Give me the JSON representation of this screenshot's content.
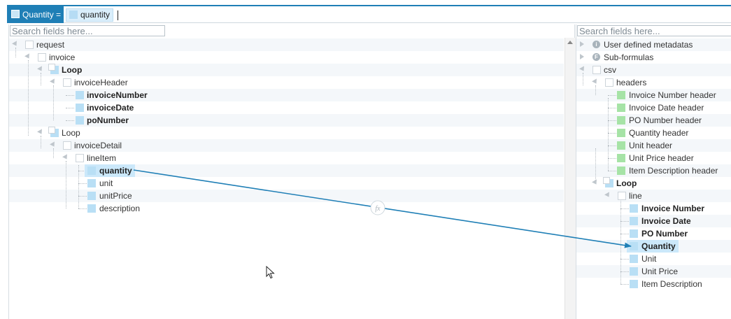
{
  "formula": {
    "target": "Quantity =",
    "token": "quantity"
  },
  "left": {
    "search_placeholder": "Search fields here...",
    "nodes": {
      "request": "request",
      "invoice": "invoice",
      "loop1": "Loop",
      "invoiceHeader": "invoiceHeader",
      "invoiceNumber": "invoiceNumber",
      "invoiceDate": "invoiceDate",
      "poNumber": "poNumber",
      "loop2": "Loop",
      "invoiceDetail": "invoiceDetail",
      "lineItem": "lineItem",
      "quantity": "quantity",
      "unit": "unit",
      "unitPrice": "unitPrice",
      "description": "description"
    }
  },
  "right": {
    "search_placeholder": "Search fields here...",
    "nodes": {
      "udm": "User defined metadatas",
      "subformulas": "Sub-formulas",
      "csv": "csv",
      "headers": "headers",
      "h_invoiceNumber": "Invoice Number header",
      "h_invoiceDate": "Invoice Date header",
      "h_poNumber": "PO Number header",
      "h_quantity": "Quantity header",
      "h_unit": "Unit header",
      "h_unitPrice": "Unit Price header",
      "h_itemDescription": "Item Description header",
      "loop": "Loop",
      "line": "line",
      "invoiceNumber": "Invoice Number",
      "invoiceDate": "Invoice Date",
      "poNumber": "PO Number",
      "quantity": "Quantity",
      "unit": "Unit",
      "unitPrice": "Unit Price",
      "itemDescription": "Item Description"
    },
    "udm_icon": "i",
    "subformula_icon": "F"
  },
  "mapping": {
    "function_icon": "fx"
  },
  "colors": {
    "accent": "#1f7fb6",
    "field_blue": "#b9dff5",
    "field_green": "#a6e3a6",
    "selection": "#cbe8fa"
  }
}
